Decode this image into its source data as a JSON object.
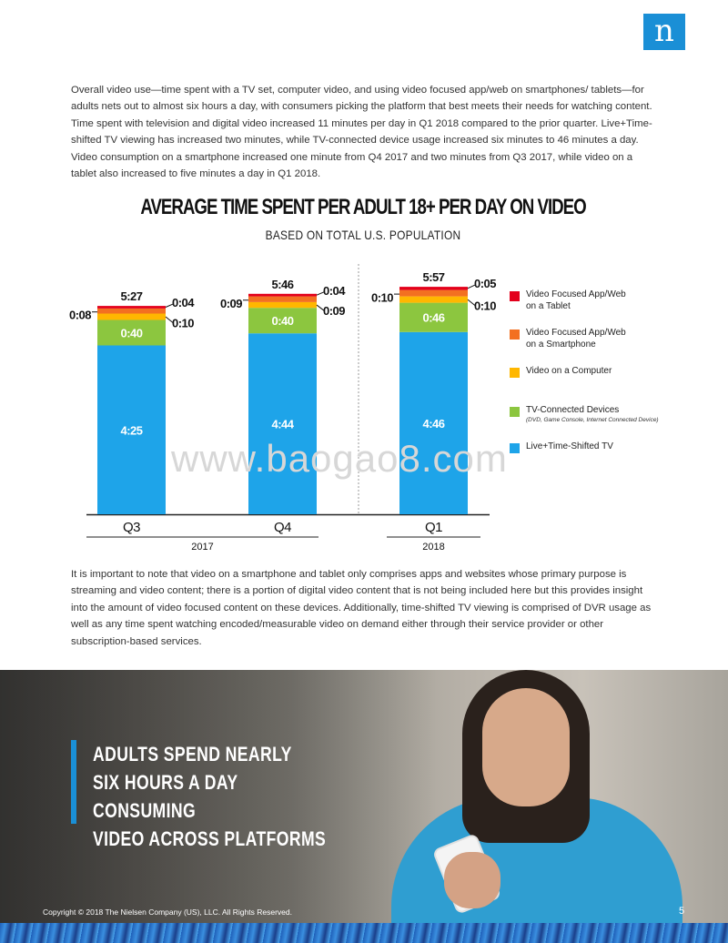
{
  "logo": {
    "glyph": "n"
  },
  "intro_text": "Overall video use—time spent with a TV set, computer video, and using video focused app/web on smartphones/ tablets—for adults nets out to almost six hours a day, with consumers picking the platform that best meets their needs for watching content. Time spent with television and digital video increased 11 minutes per day in Q1 2018 compared to the prior quarter. Live+Time-shifted TV viewing has increased two minutes, while TV-connected device usage increased six minutes to 46 minutes a day. Video consumption on a smartphone increased one minute from Q4 2017 and two minutes from Q3 2017, while video on a tablet also increased to five minutes a day in Q1 2018.",
  "chart_data": {
    "type": "bar",
    "stacked": true,
    "title": "AVERAGE TIME SPENT PER ADULT 18+ PER DAY ON VIDEO",
    "subtitle": "BASED ON TOTAL U.S. POPULATION",
    "unit": "h:mm",
    "categories": [
      "Q3",
      "Q4",
      "Q1"
    ],
    "groups": [
      {
        "label": "2017",
        "categories": [
          "Q3",
          "Q4"
        ]
      },
      {
        "label": "2018",
        "categories": [
          "Q1"
        ]
      }
    ],
    "totals": [
      "5:27",
      "5:46",
      "5:57"
    ],
    "series": [
      {
        "name": "Live+Time-Shifted TV",
        "color": "#1ea4e9",
        "values": [
          265,
          284,
          286
        ],
        "labels": [
          "4:25",
          "4:44",
          "4:46"
        ]
      },
      {
        "name": "TV-Connected Devices",
        "color": "#8cc63f",
        "values": [
          40,
          40,
          46
        ],
        "labels": [
          "0:40",
          "0:40",
          "0:46"
        ]
      },
      {
        "name": "Video on a Computer",
        "color": "#ffb700",
        "values": [
          10,
          9,
          10
        ],
        "labels": [
          "0:10",
          "0:09",
          "0:10"
        ]
      },
      {
        "name": "Video Focused App/Web on a Smartphone",
        "color": "#f37021",
        "values": [
          8,
          9,
          10
        ],
        "labels": [
          "0:08",
          "0:09",
          "0:10"
        ]
      },
      {
        "name": "Video Focused App/Web on a Tablet",
        "color": "#e3001b",
        "values": [
          4,
          4,
          5
        ],
        "labels": [
          "0:04",
          "0:04",
          "0:05"
        ]
      }
    ]
  },
  "legend": [
    {
      "line1": "Video Focused App/Web",
      "line2": "on a Tablet",
      "note": "",
      "color": "#e3001b"
    },
    {
      "line1": "Video Focused App/Web",
      "line2": "on a Smartphone",
      "note": "",
      "color": "#f37021"
    },
    {
      "line1": "Video on a Computer",
      "line2": "",
      "note": "",
      "color": "#ffb700"
    },
    {
      "line1": "TV-Connected Devices",
      "line2": "",
      "note": "(DVD, Game Console, Internet Connected Device)",
      "color": "#8cc63f"
    },
    {
      "line1": "Live+Time-Shifted TV",
      "line2": "",
      "note": "",
      "color": "#1ea4e9"
    }
  ],
  "watermark": "www.baogao8.com",
  "body_text": "It is important to note that video on a smartphone and tablet only comprises apps and websites whose primary purpose is streaming and video content; there is a portion of digital video content that is not being included here but this provides insight into the amount of video focused content on these devices. Additionally, time-shifted TV viewing is comprised of DVR usage as well as any time spent watching encoded/measurable video on demand either through their service provider or other subscription-based services.",
  "headline": {
    "line1": "ADULTS SPEND NEARLY",
    "line2": "SIX HOURS A DAY CONSUMING",
    "line3": "VIDEO ACROSS PLATFORMS"
  },
  "footer": {
    "copyright": "Copyright © 2018 The Nielsen Company (US), LLC. All Rights Reserved.",
    "page": "5"
  }
}
